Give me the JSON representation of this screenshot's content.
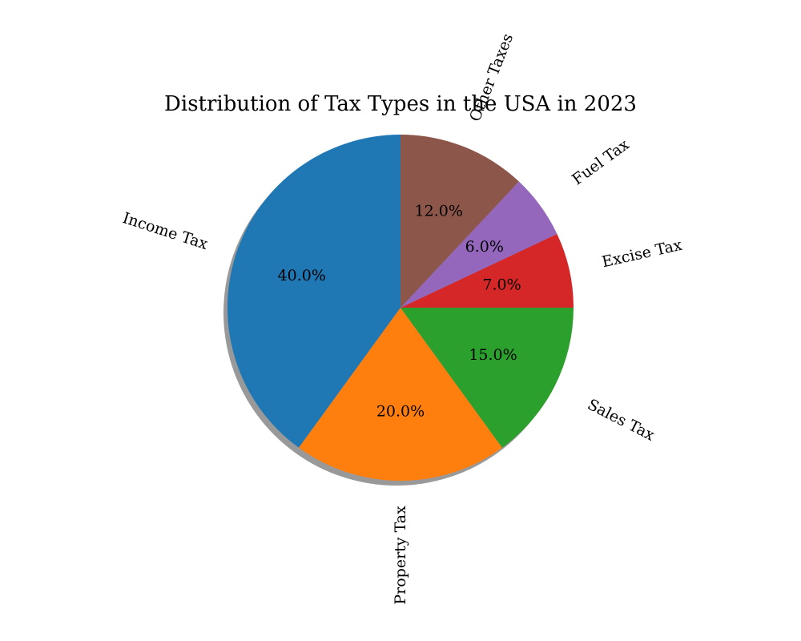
{
  "chart_data": {
    "type": "pie",
    "title": "Distribution of Tax Types in the USA in 2023",
    "start_angle_deg": 90,
    "direction": "counterclockwise",
    "shadow": true,
    "slices": [
      {
        "label": "Income Tax",
        "value": 40,
        "pct_label": "40.0%",
        "color": "#1f77b4"
      },
      {
        "label": "Property Tax",
        "value": 20,
        "pct_label": "20.0%",
        "color": "#ff7f0e"
      },
      {
        "label": "Sales Tax",
        "value": 15,
        "pct_label": "15.0%",
        "color": "#2ca02c"
      },
      {
        "label": "Excise Tax",
        "value": 7,
        "pct_label": "7.0%",
        "color": "#d62728"
      },
      {
        "label": "Fuel Tax",
        "value": 6,
        "pct_label": "6.0%",
        "color": "#9467bd"
      },
      {
        "label": "Other Taxes",
        "value": 12,
        "pct_label": "12.0%",
        "color": "#8c564b"
      }
    ]
  }
}
